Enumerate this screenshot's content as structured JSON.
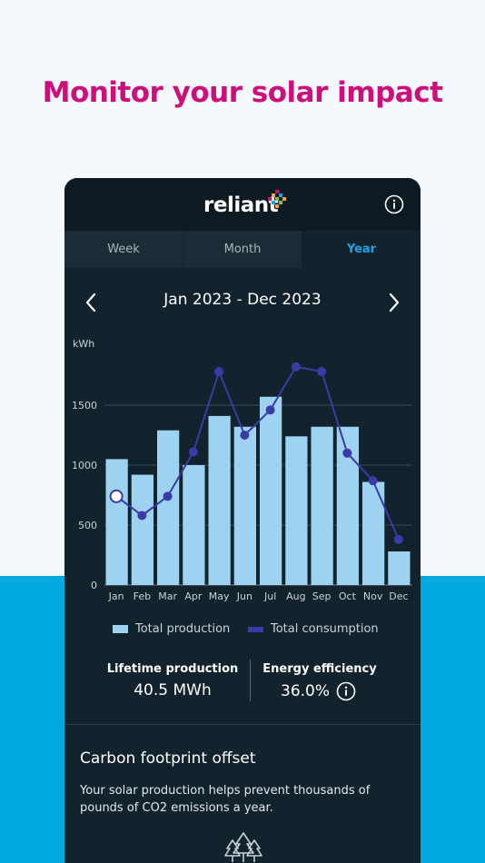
{
  "headline": "Monitor your solar impact",
  "header": {
    "logo_text": "reliant",
    "logo_mark": "reliant-logo-mark",
    "info_icon": "info-icon"
  },
  "tabs": [
    {
      "label": "Week",
      "active": false
    },
    {
      "label": "Month",
      "active": false
    },
    {
      "label": "Year",
      "active": true
    }
  ],
  "range": {
    "label": "Jan 2023 - Dec 2023",
    "prev_icon": "chevron-left-icon",
    "next_icon": "chevron-right-icon"
  },
  "chart_data": {
    "type": "bar",
    "ylabel": "kWh",
    "ylim": [
      0,
      1800
    ],
    "yticks": [
      0,
      500,
      1000,
      1500
    ],
    "grid": true,
    "categories": [
      "Jan",
      "Feb",
      "Mar",
      "Apr",
      "May",
      "Jun",
      "Jul",
      "Aug",
      "Sep",
      "Oct",
      "Nov",
      "Dec"
    ],
    "series": [
      {
        "name": "Total production",
        "kind": "bar",
        "color": "#9dd3f1",
        "values": [
          1050,
          920,
          1290,
          1000,
          1410,
          1320,
          1570,
          1240,
          1320,
          1320,
          860,
          280
        ]
      },
      {
        "name": "Total consumption",
        "kind": "line",
        "color": "#3b3aa6",
        "values": [
          740,
          580,
          740,
          1110,
          1780,
          1250,
          1460,
          1820,
          1780,
          1100,
          870,
          380
        ]
      }
    ],
    "highlighted_point": {
      "series": "Total consumption",
      "category": "Jan"
    },
    "legend": "bottom"
  },
  "stats": {
    "lifetime_label": "Lifetime production",
    "lifetime_value": "40.5 MWh",
    "efficiency_label": "Energy efficiency",
    "efficiency_value": "36.0%",
    "efficiency_info_icon": "info-icon"
  },
  "carbon": {
    "title": "Carbon footprint offset",
    "description": "Your solar production helps prevent thousands of pounds of CO2 emissions a year.",
    "icon": "trees-icon"
  },
  "colors": {
    "headline": "#cc0f7d",
    "accent": "#1aa4e6",
    "panel": "#13232d",
    "band": "#00a8e0"
  }
}
